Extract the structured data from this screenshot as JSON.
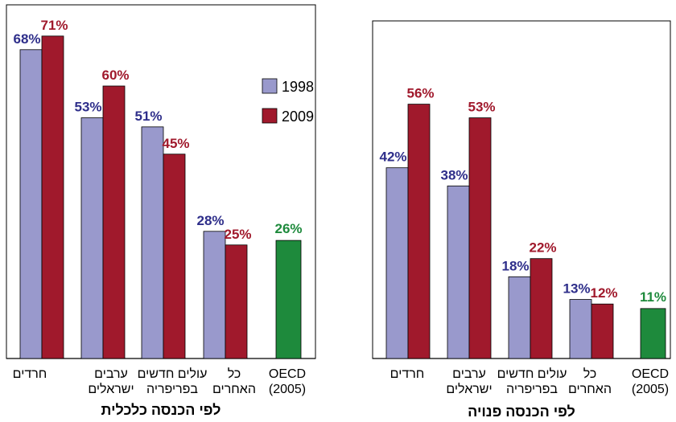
{
  "colors": {
    "y1998": "#9999cc",
    "y2009": "#a0192c",
    "oecd": "#1e8a3c",
    "label1998": "#2e2e8a",
    "label2009": "#a0192c",
    "labelOecd": "#1e8a3c"
  },
  "legend": {
    "items": [
      "1998",
      "2009"
    ]
  },
  "chart_data": [
    {
      "type": "bar",
      "title": "לפי הכנסה כלכלית",
      "categories": [
        "חרדים",
        "ערבים ישראלים",
        "עולים חדשים בפריפריה",
        "כל האחרים",
        "OECD (2005)"
      ],
      "category_lines": [
        [
          "חרדים"
        ],
        [
          "ערבים",
          "ישראלים"
        ],
        [
          "עולים חדשים",
          "בפריפריה"
        ],
        [
          "כל",
          "האחרים"
        ],
        [
          "OECD",
          "(2005)"
        ]
      ],
      "series": [
        {
          "name": "1998",
          "values": [
            68,
            53,
            51,
            28,
            null
          ],
          "labels": [
            "68%",
            "53%",
            "51%",
            "28%",
            ""
          ]
        },
        {
          "name": "2009",
          "values": [
            71,
            60,
            45,
            25,
            null
          ],
          "labels": [
            "71%",
            "60%",
            "45%",
            "25%",
            ""
          ]
        }
      ],
      "oecd": {
        "value": 26,
        "label": "26%"
      },
      "ylim": [
        0,
        75
      ]
    },
    {
      "type": "bar",
      "title": "לפי הכנסה פנויה",
      "categories": [
        "חרדים",
        "ערבים ישראלים",
        "עולים חדשים בפריפריה",
        "כל האחרים",
        "OECD (2005)"
      ],
      "category_lines": [
        [
          "חרדים"
        ],
        [
          "ערבים",
          "ישראלים"
        ],
        [
          "עולים חדשים",
          "בפריפריה"
        ],
        [
          "כל",
          "האחרים"
        ],
        [
          "OECD",
          "(2005)"
        ]
      ],
      "series": [
        {
          "name": "1998",
          "values": [
            42,
            38,
            18,
            13,
            null
          ],
          "labels": [
            "42%",
            "38%",
            "18%",
            "13%",
            ""
          ]
        },
        {
          "name": "2009",
          "values": [
            56,
            53,
            22,
            12,
            null
          ],
          "labels": [
            "56%",
            "53%",
            "22%",
            "12%",
            ""
          ]
        }
      ],
      "oecd": {
        "value": 11,
        "label": "11%"
      },
      "ylim": [
        0,
        75
      ]
    }
  ]
}
